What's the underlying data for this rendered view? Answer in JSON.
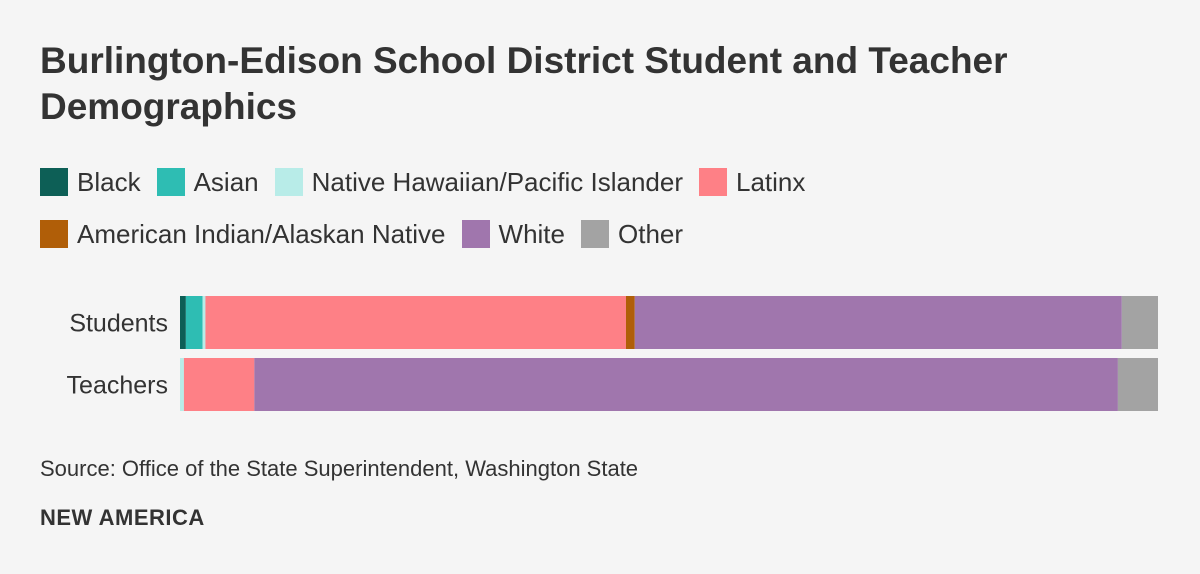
{
  "title": "Burlington-Edison School District Student and Teacher Demographics",
  "source": "Source: Office of the State Superintendent, Washington State",
  "brand": "NEW AMERICA",
  "chart_data": {
    "type": "bar",
    "orientation": "horizontal",
    "stacked": true,
    "categories": [
      "Students",
      "Teachers"
    ],
    "xlim": [
      0,
      100
    ],
    "grid": false,
    "legend_placement": "top",
    "series": [
      {
        "name": "Black",
        "color": "#0d5f56",
        "values": [
          0.6,
          0.0
        ]
      },
      {
        "name": "Asian",
        "color": "#2ebdb3",
        "values": [
          1.7,
          0.0
        ]
      },
      {
        "name": "Native Hawaiian/Pacific Islander",
        "color": "#b8ece8",
        "values": [
          0.3,
          0.4
        ]
      },
      {
        "name": "Latinx",
        "color": "#fe8086",
        "values": [
          43.0,
          7.2
        ]
      },
      {
        "name": "American Indian/Alaskan Native",
        "color": "#b05e08",
        "values": [
          0.9,
          0.0
        ]
      },
      {
        "name": "White",
        "color": "#a076ad",
        "values": [
          49.8,
          88.3
        ]
      },
      {
        "name": "Other",
        "color": "#a3a3a3",
        "values": [
          3.7,
          4.1
        ]
      }
    ]
  }
}
